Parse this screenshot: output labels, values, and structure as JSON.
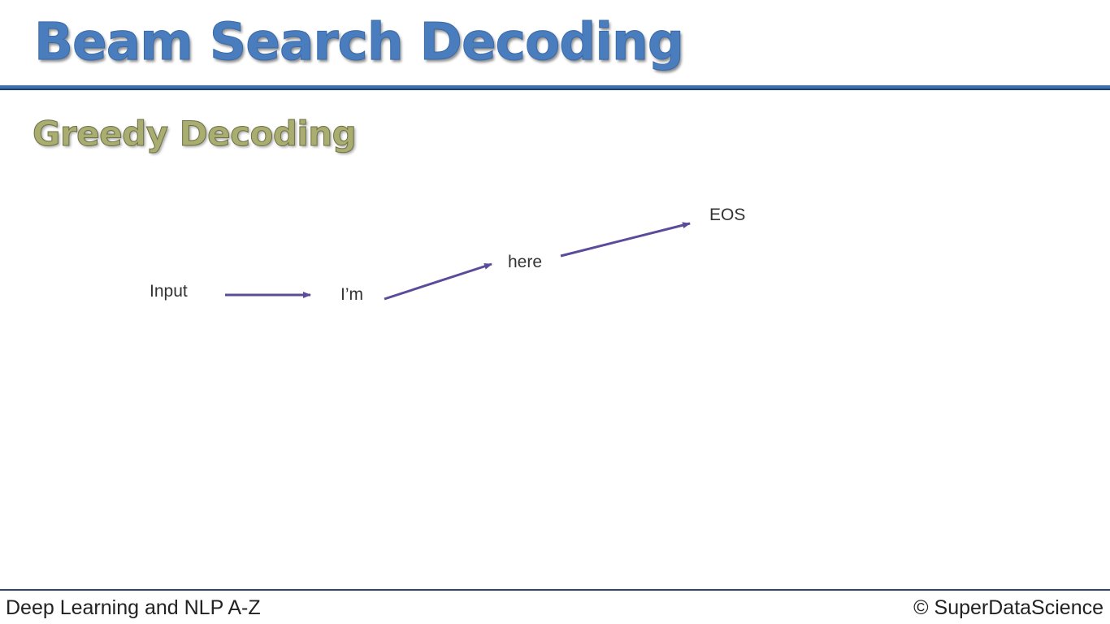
{
  "slide": {
    "title": "Beam Search Decoding",
    "subtitle": "Greedy Decoding"
  },
  "diagram": {
    "nodes": [
      {
        "id": "input",
        "label": "Input"
      },
      {
        "id": "im",
        "label": "I’m"
      },
      {
        "id": "here",
        "label": "here"
      },
      {
        "id": "eos",
        "label": "EOS"
      }
    ],
    "edges": [
      {
        "from": "input",
        "to": "im"
      },
      {
        "from": "im",
        "to": "here"
      },
      {
        "from": "here",
        "to": "eos"
      }
    ],
    "arrow_color": "#5b4b9a"
  },
  "footer": {
    "course": "Deep Learning and NLP A-Z",
    "copyright": "© SuperDataScience"
  },
  "colors": {
    "title": "#4a7dbd",
    "subtitle": "#a9ad6f",
    "title_rule": "#3a6fb5"
  }
}
